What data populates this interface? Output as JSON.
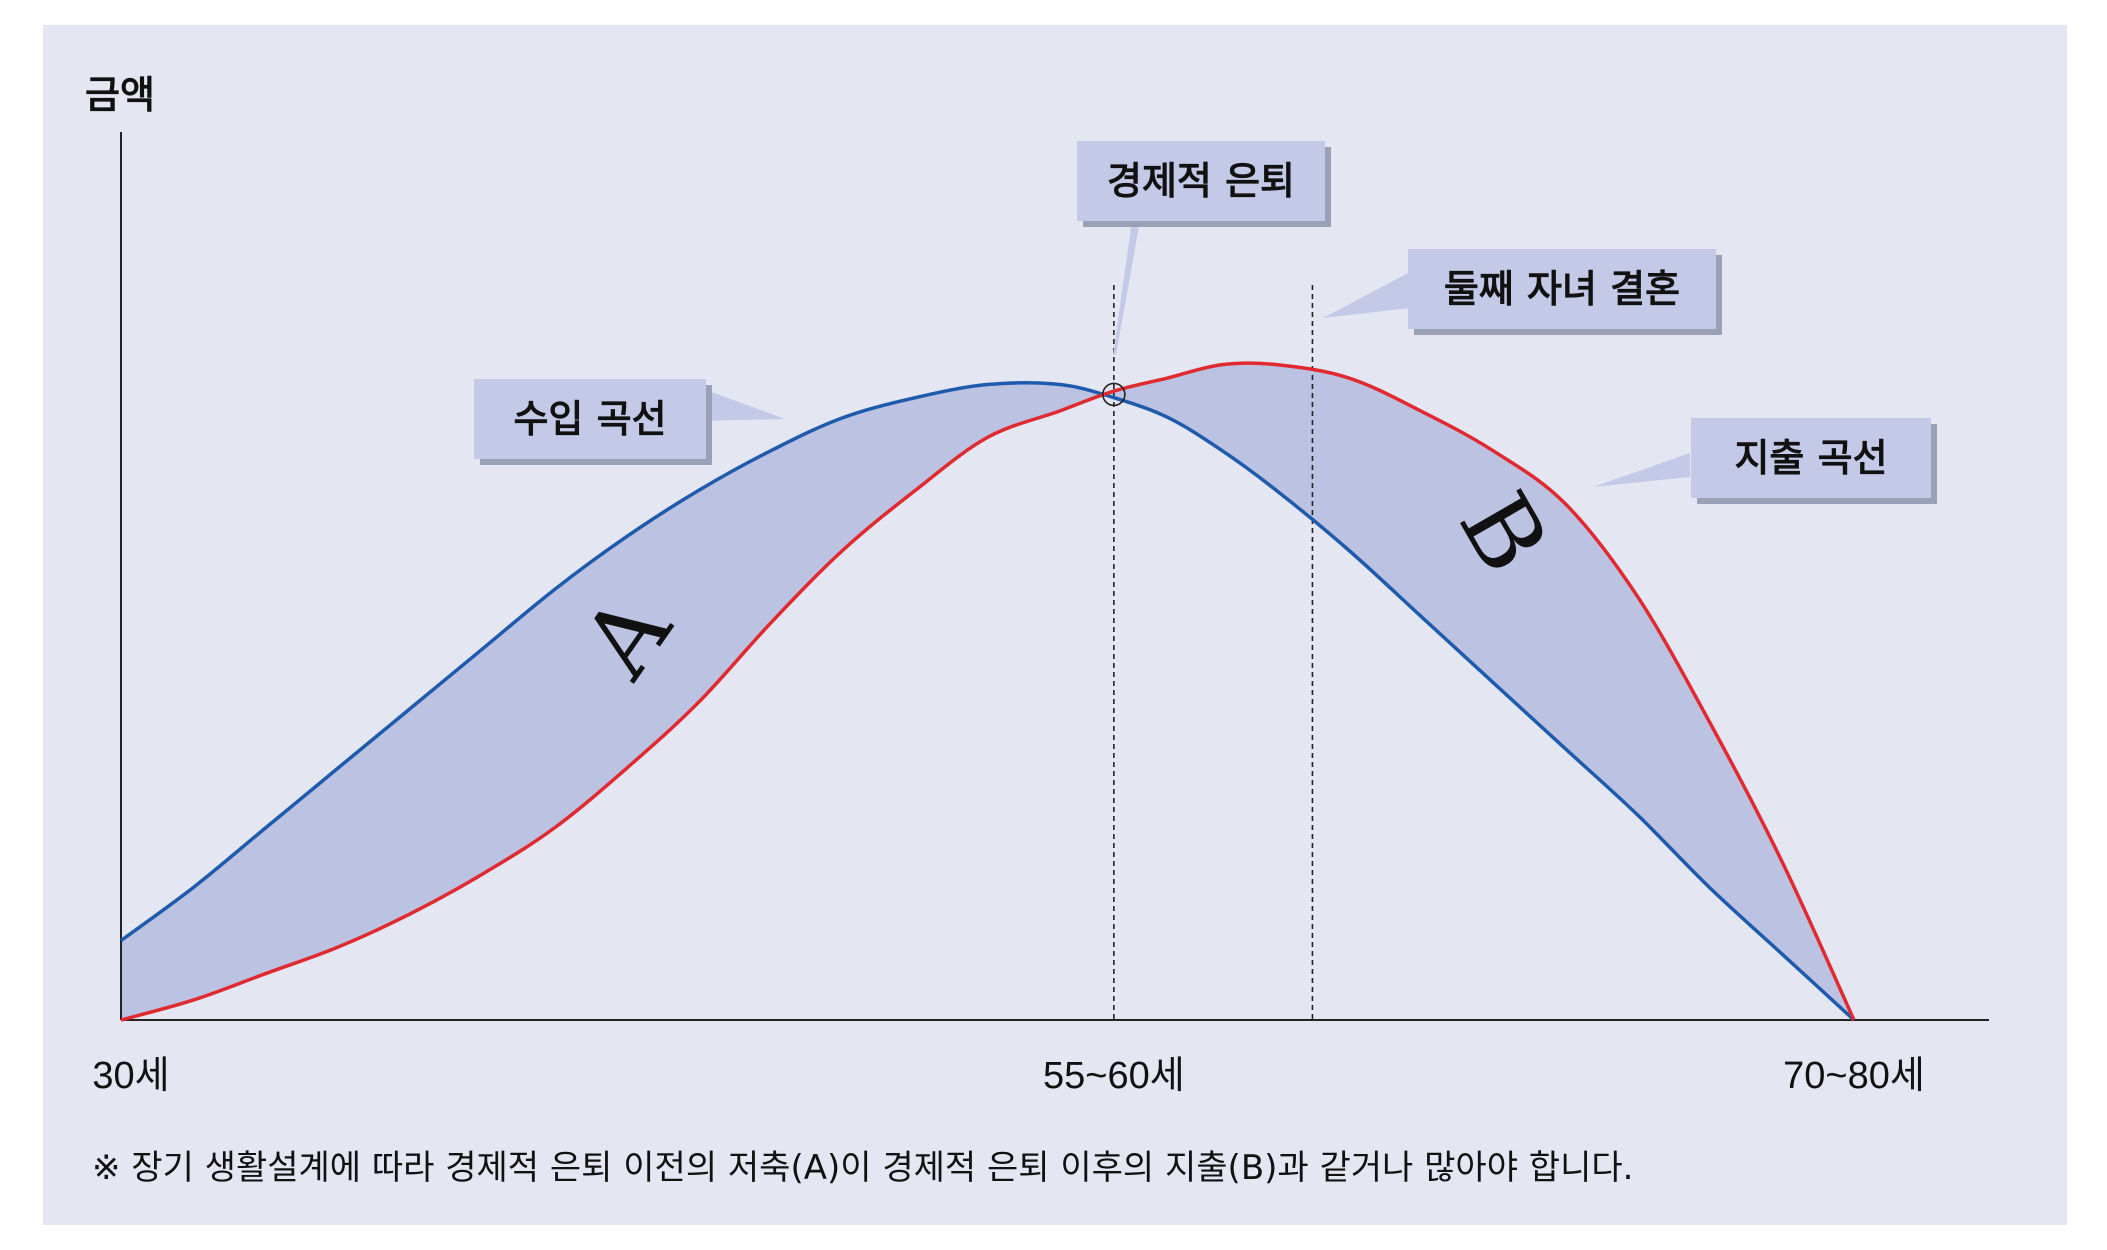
{
  "chart_data": {
    "type": "area",
    "title": "",
    "ylabel": "금액",
    "xlabel": "",
    "x_ticks": [
      "30세",
      "55~60세",
      "70~80세"
    ],
    "xlim": [
      30,
      78
    ],
    "ylim": [
      0,
      100
    ],
    "series": [
      {
        "name": "수입 곡선",
        "color": "#1f5bad",
        "x": [
          30,
          32,
          34,
          36,
          38,
          40,
          42,
          44,
          46,
          48,
          50,
          52,
          54,
          56,
          57.5,
          59,
          60.5,
          62,
          64,
          66,
          68,
          70,
          72,
          74,
          76,
          78
        ],
        "y": [
          12,
          20,
          29,
          38,
          47,
          56,
          65,
          73,
          80,
          86,
          91,
          94,
          96,
          96,
          94,
          91,
          86,
          80,
          71,
          61,
          51,
          41,
          31,
          20,
          10,
          0
        ]
      },
      {
        "name": "지출 곡선",
        "color": "#e02a2f",
        "x": [
          30,
          32,
          34,
          36,
          38,
          40,
          42,
          44,
          46,
          48,
          50,
          52,
          54,
          56,
          57.5,
          59,
          60.5,
          62,
          64,
          66,
          68,
          70,
          72,
          74,
          76,
          78
        ],
        "y": [
          0,
          3,
          7,
          11,
          16,
          22,
          29,
          38,
          48,
          60,
          71,
          80,
          88,
          92,
          95,
          97,
          99,
          99,
          97,
          92,
          86,
          78,
          64,
          45,
          24,
          0
        ]
      }
    ],
    "annotations": [
      {
        "label": "경제적 은퇴",
        "x": 57.5,
        "dashed_line": true
      },
      {
        "label": "둘째 자녀 결혼",
        "x": 63,
        "dashed_line": true
      },
      {
        "label": "수입 곡선",
        "target": "income"
      },
      {
        "label": "지출 곡선",
        "target": "expense"
      }
    ],
    "regions": [
      {
        "label": "A",
        "meaning": "경제적 은퇴 이전의 저축"
      },
      {
        "label": "B",
        "meaning": "경제적 은퇴 이후의 지출"
      }
    ],
    "fill_color": "#bcc3e2",
    "label_box_color": "#c3c9e6"
  },
  "footnote": "※ 장기 생활설계에 따라 경제적 은퇴 이전의 저축(A)이 경제적 은퇴 이후의 지출(B)과 같거나 많아야 합니다."
}
